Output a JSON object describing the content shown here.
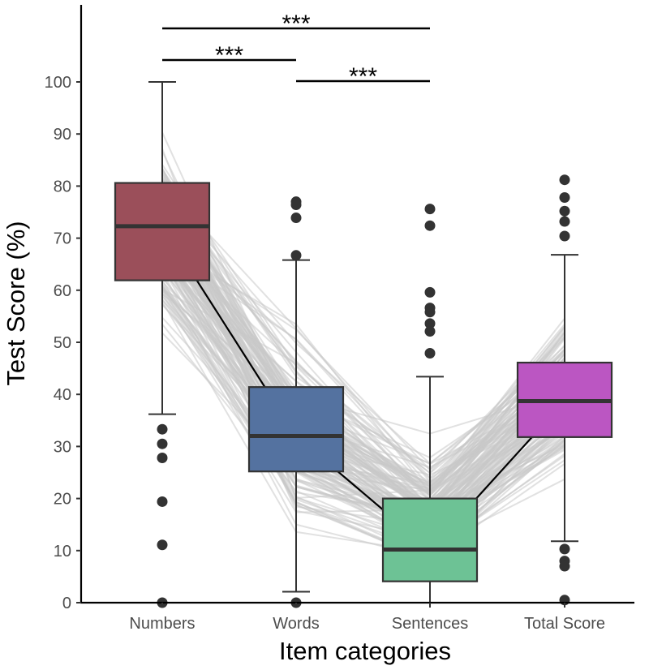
{
  "chart_data": {
    "type": "boxplot",
    "title": "",
    "xlabel": "Item categories",
    "ylabel": "Test Score (%)",
    "ylim": [
      0,
      100
    ],
    "yticks": [
      0,
      10,
      20,
      30,
      40,
      50,
      60,
      70,
      80,
      90,
      100
    ],
    "categories": [
      "Numbers",
      "Words",
      "Sentences",
      "Total Score"
    ],
    "boxes": [
      {
        "name": "Numbers",
        "color": "#9b4f5a",
        "whisker_low": 36.2,
        "q1": 61.9,
        "median": 72.3,
        "q3": 80.6,
        "whisker_high": 100,
        "outliers": [
          33.3,
          30.5,
          27.8,
          19.4,
          11.1,
          0
        ]
      },
      {
        "name": "Words",
        "color": "#5472a0",
        "whisker_low": 2.1,
        "q1": 25.2,
        "median": 32.0,
        "q3": 41.4,
        "whisker_high": 65.8,
        "outliers": [
          77.0,
          76.4,
          73.9,
          66.7,
          0
        ]
      },
      {
        "name": "Sentences",
        "color": "#6dc295",
        "whisker_low": 0,
        "q1": 4.1,
        "median": 10.2,
        "q3": 20.0,
        "whisker_high": 43.4,
        "outliers": [
          75.6,
          72.4,
          59.6,
          56.6,
          55.8,
          53.6,
          52.1,
          47.9
        ]
      },
      {
        "name": "Total Score",
        "color": "#bb56c2",
        "whisker_low": 11.8,
        "q1": 31.8,
        "median": 38.7,
        "q3": 46.1,
        "whisker_high": 66.8,
        "outliers": [
          81.2,
          77.8,
          75.2,
          73.2,
          70.4,
          10.3,
          8.0,
          7.0,
          0.5
        ]
      }
    ],
    "median_line": [
      72.3,
      32.0,
      10.2,
      38.7
    ],
    "background_lines_note": "individual participant trajectories drawn as light grey lines",
    "significance": [
      {
        "from": "Numbers",
        "to": "Words",
        "label": "***"
      },
      {
        "from": "Words",
        "to": "Sentences",
        "label": "***"
      },
      {
        "from": "Numbers",
        "to": "Sentences",
        "label": "***"
      }
    ]
  }
}
